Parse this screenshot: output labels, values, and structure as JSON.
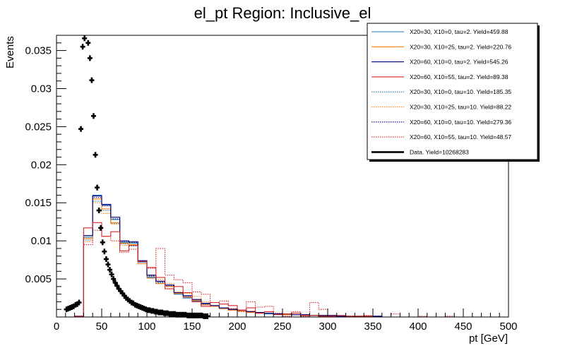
{
  "chart_data": {
    "type": "step-histogram",
    "title": "el_pt Region: Inclusive_el",
    "xlabel": "pt [GeV]",
    "ylabel": "Events",
    "xlim": [
      0,
      500
    ],
    "ylim": [
      0,
      0.037
    ],
    "xticks": [
      0,
      50,
      100,
      150,
      200,
      250,
      300,
      350,
      400,
      450,
      500
    ],
    "xtick_labels": [
      "0",
      "50",
      "100",
      "150",
      "200",
      "250",
      "300",
      "350",
      "400",
      "450",
      "500"
    ],
    "yticks": [
      0.005,
      0.01,
      0.015,
      0.02,
      0.025,
      0.03,
      0.035
    ],
    "ytick_labels": [
      "0.005",
      "0.01",
      "0.015",
      "0.02",
      "0.025",
      "0.03",
      "0.035"
    ],
    "bin_width": 10,
    "bin_edges_start": 0,
    "series": [
      {
        "name": "X20=30, X10=0, tau=2. Yield=459.88",
        "color": "#1f77b4",
        "style": "solid",
        "values": [
          0,
          0,
          0.0001,
          0.0105,
          0.016,
          0.0147,
          0.0128,
          0.0098,
          0.0097,
          0.0072,
          0.0052,
          0.0044,
          0.004,
          0.003,
          0.0025,
          0.0021,
          0.0016,
          0.0014,
          0.0011,
          0.0009,
          0.0008,
          0.0006,
          0.0005,
          0.0004,
          0.0004,
          0.0003,
          0.0003,
          0.0002,
          0.0002,
          0.0002,
          0.0001,
          0.0001,
          0.0001,
          0.0001,
          0.0001,
          0.0001,
          0,
          0,
          0,
          0,
          0,
          0,
          0,
          0,
          0,
          0,
          0,
          0,
          0,
          0
        ]
      },
      {
        "name": "X20=30, X10=25, tau=2. Yield=220.76",
        "color": "#ff7f0e",
        "style": "solid",
        "values": [
          0,
          0,
          0.0001,
          0.0103,
          0.0155,
          0.0142,
          0.0124,
          0.0097,
          0.0095,
          0.007,
          0.0051,
          0.0044,
          0.004,
          0.0031,
          0.0026,
          0.0022,
          0.0016,
          0.0014,
          0.0011,
          0.0009,
          0.0008,
          0.0006,
          0.0005,
          0.0005,
          0.0004,
          0.0003,
          0.0003,
          0.0002,
          0.0002,
          0.0002,
          0.0001,
          0.0001,
          0.0001,
          0.0001,
          0.0001,
          0,
          0,
          0,
          0,
          0,
          0,
          0,
          0,
          0,
          0,
          0,
          0,
          0,
          0,
          0
        ]
      },
      {
        "name": "X20=60, X10=0, tau=2. Yield=545.26",
        "color": "#000080",
        "style": "solid",
        "values": [
          0,
          0,
          0.0001,
          0.0107,
          0.0159,
          0.0148,
          0.0131,
          0.01,
          0.0099,
          0.0074,
          0.0055,
          0.0047,
          0.0042,
          0.0032,
          0.0028,
          0.0023,
          0.0018,
          0.0015,
          0.0012,
          0.001,
          0.0009,
          0.0007,
          0.0006,
          0.0005,
          0.0004,
          0.0004,
          0.0003,
          0.0003,
          0.0002,
          0.0002,
          0.0002,
          0.0001,
          0.0001,
          0.0001,
          0.0001,
          0.0001,
          0,
          0,
          0,
          0,
          0,
          0,
          0,
          0,
          0,
          0,
          0,
          0,
          0,
          0
        ]
      },
      {
        "name": "X20=60, X10=55, tau=2. Yield=89.38",
        "color": "#d62728",
        "style": "solid",
        "values": [
          0,
          0,
          0.0001,
          0.0117,
          0.0124,
          0.0106,
          0.0112,
          0.0087,
          0.0094,
          0.0073,
          0.0065,
          0.0052,
          0.0037,
          0.004,
          0.0032,
          0.002,
          0.0014,
          0.0019,
          0.0017,
          0.0015,
          0.0009,
          0.0012,
          0.0005,
          0.0007,
          0.0003,
          0.0004,
          0.0005,
          0.0002,
          0.0002,
          0.0001,
          0.0001,
          0.0002,
          0.0001,
          0.0001,
          0.0001,
          0,
          0,
          0,
          0,
          0,
          0,
          0,
          0,
          0,
          0,
          0,
          0,
          0,
          0,
          0
        ]
      },
      {
        "name": "X20=30, X10=0, tau=10. Yield=185.35",
        "color": "#1f77b4",
        "style": "dotted",
        "values": [
          0,
          0,
          0.0001,
          0.0101,
          0.0152,
          0.014,
          0.0123,
          0.0096,
          0.0093,
          0.007,
          0.0053,
          0.0045,
          0.004,
          0.0031,
          0.0026,
          0.0023,
          0.0017,
          0.0015,
          0.0012,
          0.001,
          0.0008,
          0.0007,
          0.0006,
          0.0005,
          0.0004,
          0.0004,
          0.0003,
          0.0003,
          0.0002,
          0.0002,
          0.0002,
          0.0001,
          0.0001,
          0.0001,
          0.0001,
          0.0001,
          0,
          0,
          0,
          0,
          0,
          0,
          0,
          0,
          0,
          0,
          0,
          0,
          0,
          0
        ]
      },
      {
        "name": "X20=30, X10=25, tau=10. Yield=88.22",
        "color": "#ff7f0e",
        "style": "dotted",
        "values": [
          0,
          0,
          0.0001,
          0.0099,
          0.015,
          0.0136,
          0.0122,
          0.0094,
          0.0098,
          0.007,
          0.0054,
          0.0049,
          0.0044,
          0.0033,
          0.0031,
          0.0027,
          0.002,
          0.0014,
          0.0012,
          0.0011,
          0.0009,
          0.0008,
          0.0006,
          0.0005,
          0.0004,
          0.0004,
          0.0003,
          0.0003,
          0.0002,
          0.0002,
          0.0002,
          0.0001,
          0.0001,
          0.0001,
          0.0001,
          0,
          0,
          0,
          0,
          0,
          0,
          0,
          0,
          0,
          0,
          0,
          0,
          0,
          0,
          0
        ]
      },
      {
        "name": "X20=60, X10=0, tau=10. Yield=279.36",
        "color": "#000080",
        "style": "dotted",
        "values": [
          0,
          0,
          0.0001,
          0.0103,
          0.0157,
          0.0146,
          0.0129,
          0.0099,
          0.0098,
          0.0073,
          0.0054,
          0.0046,
          0.0041,
          0.0031,
          0.0027,
          0.0022,
          0.0017,
          0.0014,
          0.0012,
          0.001,
          0.0008,
          0.0007,
          0.0006,
          0.0005,
          0.0004,
          0.0003,
          0.0003,
          0.0003,
          0.0002,
          0.0002,
          0.0001,
          0.0001,
          0.0001,
          0.0001,
          0.0001,
          0.0001,
          0,
          0,
          0,
          0,
          0,
          0,
          0,
          0,
          0,
          0,
          0,
          0,
          0,
          0
        ]
      },
      {
        "name": "X20=60, X10=55, tau=10. Yield=48.57",
        "color": "#d62728",
        "style": "dotted",
        "values": [
          0,
          0,
          0.0001,
          0.0095,
          0.0114,
          0.0106,
          0.01,
          0.0085,
          0.0089,
          0.0073,
          0.0064,
          0.009,
          0.0055,
          0.0049,
          0.0045,
          0.0033,
          0.003,
          0.0014,
          0.0021,
          0.0011,
          0.0007,
          0.002,
          0.0013,
          0.0014,
          0.0005,
          0.0001,
          0.0007,
          0.0001,
          0.0019,
          0.001,
          0.0002,
          0.0001,
          0.0001,
          0.0001,
          0.0002,
          0.0001,
          0,
          0.0004,
          0,
          0,
          0.0001,
          0,
          0,
          0.0001,
          0,
          0,
          0,
          0,
          0,
          0
        ]
      }
    ],
    "data_points": {
      "name": "Data. Yield=10268283",
      "color": "#000000",
      "x": [
        11,
        13,
        15,
        17,
        19,
        21,
        23,
        25,
        27,
        29,
        31,
        35,
        37,
        39,
        41,
        43,
        45,
        47,
        49,
        51,
        53,
        55,
        57,
        59,
        61,
        63,
        65,
        67,
        69,
        71,
        73,
        75,
        77,
        79,
        81,
        83,
        85,
        87,
        89,
        91,
        93,
        95,
        97,
        99,
        101,
        103,
        105,
        107,
        109,
        111,
        113,
        115,
        117,
        119,
        121,
        123,
        125,
        127,
        129,
        131,
        133,
        135,
        137,
        139,
        141,
        143,
        145,
        147,
        149,
        151,
        153,
        155,
        157,
        159,
        161,
        163,
        165,
        167
      ],
      "y": [
        0.001,
        0.0011,
        0.0012,
        0.0013,
        0.0014,
        0.0016,
        0.0017,
        0.0019,
        0.0247,
        0.0355,
        0.0366,
        0.036,
        0.034,
        0.0311,
        0.0264,
        0.0213,
        0.017,
        0.014,
        0.0117,
        0.0098,
        0.0086,
        0.0076,
        0.0069,
        0.0062,
        0.0056,
        0.005,
        0.0045,
        0.0041,
        0.0037,
        0.0034,
        0.0031,
        0.0028,
        0.0025,
        0.0023,
        0.0021,
        0.0019,
        0.0018,
        0.0016,
        0.0015,
        0.0014,
        0.0013,
        0.0012,
        0.0011,
        0.001,
        0.0009,
        0.0009,
        0.0008,
        0.0008,
        0.0007,
        0.0007,
        0.0006,
        0.0006,
        0.0006,
        0.0005,
        0.0005,
        0.0005,
        0.0004,
        0.0004,
        0.0004,
        0.0004,
        0.0003,
        0.0003,
        0.0003,
        0.0003,
        0.0003,
        0.0003,
        0.0002,
        0.0002,
        0.0002,
        0.0002,
        0.0002,
        0.0002,
        0.0002,
        0.0002,
        0.0002,
        0.0001,
        0.0001,
        0.0001
      ]
    },
    "legend_position": "top-right",
    "grid": false
  }
}
